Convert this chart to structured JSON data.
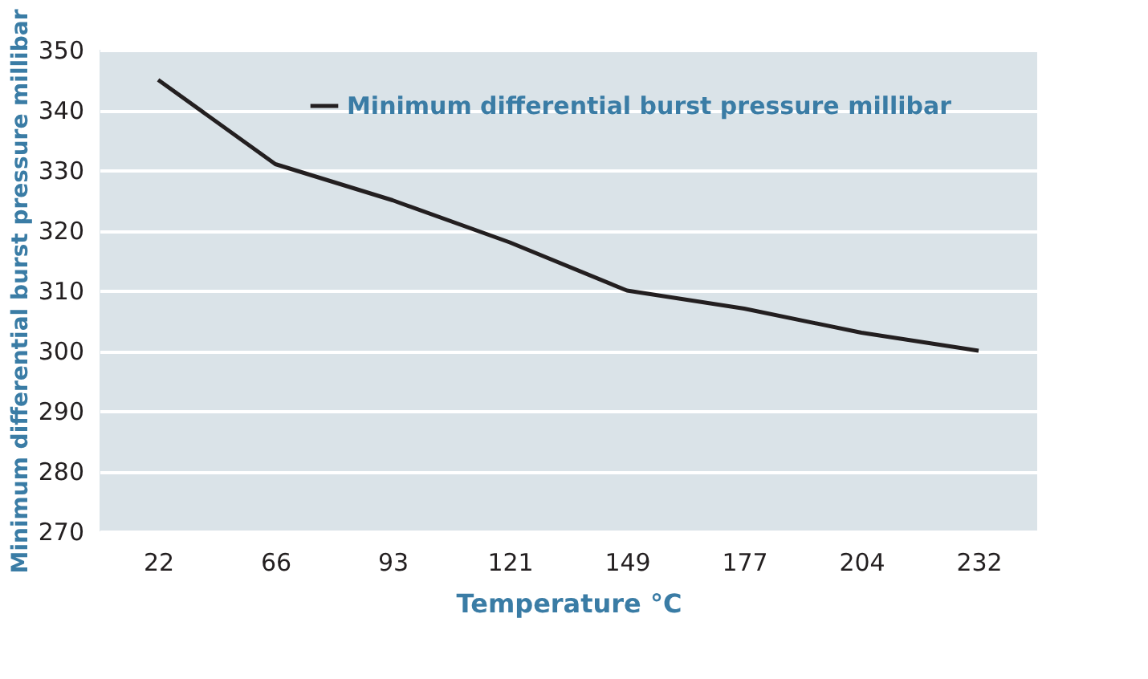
{
  "chart_data": {
    "type": "line",
    "xlabel": "Temperature °C",
    "ylabel": "Minimum differential burst pressure millibar",
    "categories": [
      "22",
      "66",
      "93",
      "121",
      "149",
      "177",
      "204",
      "232"
    ],
    "series": [
      {
        "name": "Minimum differential burst pressure millibar",
        "color": "#231f20",
        "values": [
          345,
          331,
          325,
          318,
          310,
          307,
          303,
          300
        ]
      }
    ],
    "ylim": [
      270,
      350
    ],
    "yticks": [
      270,
      280,
      290,
      300,
      310,
      320,
      330,
      340,
      350
    ],
    "grid": "y",
    "legend": "top right",
    "marker": "none",
    "line_style": "solid"
  }
}
